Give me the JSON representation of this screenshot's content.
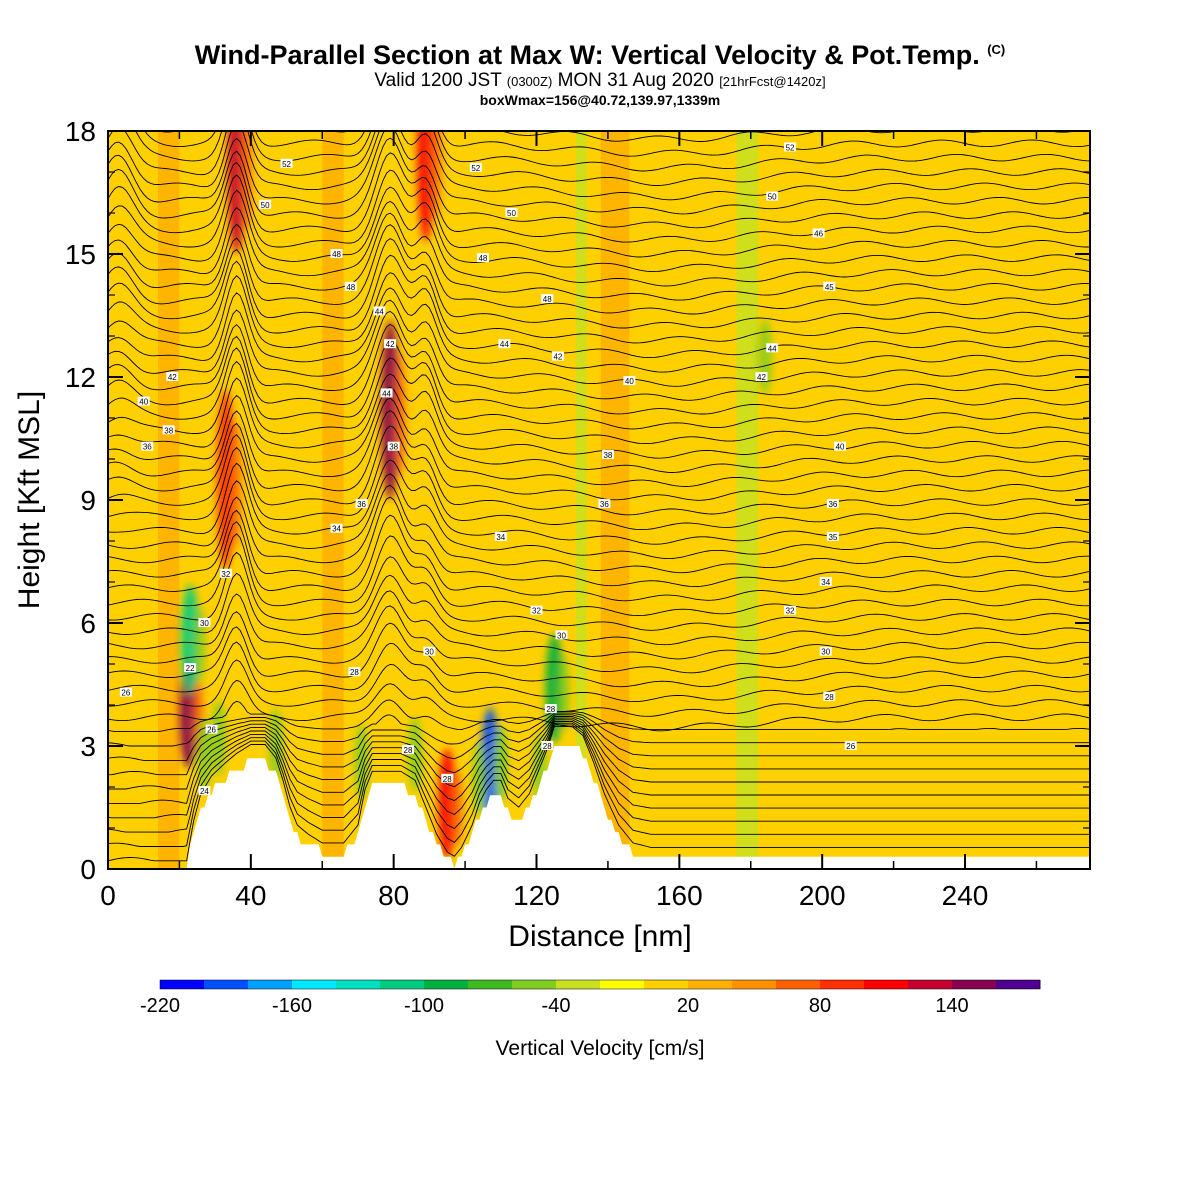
{
  "header": {
    "title": "Wind-Parallel Section at Max W: Vertical Velocity & Pot.Temp.",
    "title_mark": "(C)",
    "valid_prefix": "Valid 1200 JST",
    "valid_utc": "(0300Z)",
    "valid_date": "MON 31 Aug 2020",
    "forecast": "[21hrFcst@1420z]",
    "box_info": "boxWmax=156@40.72,139.97,1339m"
  },
  "chart_data": {
    "type": "heatmap",
    "title": "Wind-Parallel Section at Max W: Vertical Velocity & Pot.Temp.",
    "xlabel": "Distance [nm]",
    "ylabel": "Height [Kft MSL]",
    "xlim": [
      0,
      275
    ],
    "ylim": [
      0,
      18
    ],
    "x_ticks": [
      "0",
      "40",
      "80",
      "120",
      "160",
      "200",
      "240"
    ],
    "x_tick_values": [
      0,
      40,
      80,
      120,
      160,
      200,
      240
    ],
    "y_ticks": [
      "0",
      "3",
      "6",
      "9",
      "12",
      "15",
      "18"
    ],
    "y_tick_values": [
      0,
      3,
      6,
      9,
      12,
      15,
      18
    ],
    "colorbar": {
      "label": "Vertical Velocity [cm/s]",
      "tick_labels": [
        "-220",
        "-160",
        "-100",
        "-40",
        "20",
        "80",
        "140"
      ],
      "tick_values": [
        -220,
        -160,
        -100,
        -40,
        20,
        80,
        140
      ],
      "range": [
        -220,
        180
      ],
      "bin_width": 20,
      "colors": [
        "#0000ff",
        "#0050ff",
        "#00a0ff",
        "#00e8ff",
        "#00e0c0",
        "#00cc80",
        "#00b040",
        "#40b820",
        "#80cc20",
        "#c8e020",
        "#ffff00",
        "#ffd000",
        "#ffb000",
        "#ff9000",
        "#ff6000",
        "#ff3000",
        "#ff0000",
        "#c80030",
        "#880050",
        "#500090"
      ]
    },
    "terrain_kft": [
      [
        0,
        0
      ],
      [
        22,
        0
      ],
      [
        24,
        0.9
      ],
      [
        26,
        1.5
      ],
      [
        29,
        1.9
      ],
      [
        33,
        2.2
      ],
      [
        36,
        2.4
      ],
      [
        40,
        2.6
      ],
      [
        44,
        2.6
      ],
      [
        47,
        2.3
      ],
      [
        49,
        1.8
      ],
      [
        51,
        1.2
      ],
      [
        53,
        0.8
      ],
      [
        56,
        0.6
      ],
      [
        60,
        0.4
      ],
      [
        66,
        0.4
      ],
      [
        70,
        0.8
      ],
      [
        72,
        1.6
      ],
      [
        74,
        2.0
      ],
      [
        82,
        2.0
      ],
      [
        86,
        1.8
      ],
      [
        89,
        1.2
      ],
      [
        92,
        0.6
      ],
      [
        95,
        0.2
      ],
      [
        97,
        0.1
      ],
      [
        99,
        0.3
      ],
      [
        102,
        0.8
      ],
      [
        104,
        1.3
      ],
      [
        106,
        1.6
      ],
      [
        108,
        1.8
      ],
      [
        110,
        1.8
      ],
      [
        112,
        1.4
      ],
      [
        115,
        1.2
      ],
      [
        118,
        1.5
      ],
      [
        120,
        1.9
      ],
      [
        123,
        2.5
      ],
      [
        125,
        3.0
      ],
      [
        130,
        3.0
      ],
      [
        133,
        2.8
      ],
      [
        136,
        2.2
      ],
      [
        139,
        1.5
      ],
      [
        143,
        0.8
      ],
      [
        147,
        0.4
      ],
      [
        152,
        0.3
      ],
      [
        275,
        0.3
      ]
    ],
    "theta_contour_labels": [
      {
        "label": "52",
        "x": 50,
        "y": 17.2
      },
      {
        "label": "50",
        "x": 44,
        "y": 16.2
      },
      {
        "label": "48",
        "x": 64,
        "y": 15.0
      },
      {
        "label": "48",
        "x": 68,
        "y": 14.2
      },
      {
        "label": "52",
        "x": 103,
        "y": 17.1
      },
      {
        "label": "50",
        "x": 113,
        "y": 16.0
      },
      {
        "label": "48",
        "x": 105,
        "y": 14.9
      },
      {
        "label": "48",
        "x": 123,
        "y": 13.9
      },
      {
        "label": "44",
        "x": 111,
        "y": 12.8
      },
      {
        "label": "42",
        "x": 126,
        "y": 12.5
      },
      {
        "label": "40",
        "x": 146,
        "y": 11.9
      },
      {
        "label": "52",
        "x": 191,
        "y": 17.6
      },
      {
        "label": "50",
        "x": 186,
        "y": 16.4
      },
      {
        "label": "46",
        "x": 199,
        "y": 15.5
      },
      {
        "label": "45",
        "x": 202,
        "y": 14.2
      },
      {
        "label": "44",
        "x": 186,
        "y": 12.7
      },
      {
        "label": "42",
        "x": 183,
        "y": 12.0
      },
      {
        "label": "40",
        "x": 205,
        "y": 10.3
      },
      {
        "label": "44",
        "x": 76,
        "y": 13.6
      },
      {
        "label": "42",
        "x": 79,
        "y": 12.8
      },
      {
        "label": "44",
        "x": 78,
        "y": 11.6
      },
      {
        "label": "38",
        "x": 80,
        "y": 10.3
      },
      {
        "label": "42",
        "x": 18,
        "y": 12.0
      },
      {
        "label": "40",
        "x": 10,
        "y": 11.4
      },
      {
        "label": "38",
        "x": 17,
        "y": 10.7
      },
      {
        "label": "36",
        "x": 11,
        "y": 10.3
      },
      {
        "label": "36",
        "x": 71,
        "y": 8.9
      },
      {
        "label": "34",
        "x": 64,
        "y": 8.3
      },
      {
        "label": "34",
        "x": 110,
        "y": 8.1
      },
      {
        "label": "38",
        "x": 140,
        "y": 10.1
      },
      {
        "label": "36",
        "x": 139,
        "y": 8.9
      },
      {
        "label": "36",
        "x": 203,
        "y": 8.9
      },
      {
        "label": "35",
        "x": 203,
        "y": 8.1
      },
      {
        "label": "34",
        "x": 201,
        "y": 7.0
      },
      {
        "label": "32",
        "x": 33,
        "y": 7.2
      },
      {
        "label": "32",
        "x": 120,
        "y": 6.3
      },
      {
        "label": "32",
        "x": 191,
        "y": 6.3
      },
      {
        "label": "30",
        "x": 27,
        "y": 6.0
      },
      {
        "label": "30",
        "x": 90,
        "y": 5.3
      },
      {
        "label": "30",
        "x": 127,
        "y": 5.7
      },
      {
        "label": "30",
        "x": 201,
        "y": 5.3
      },
      {
        "label": "28",
        "x": 69,
        "y": 4.8
      },
      {
        "label": "28",
        "x": 202,
        "y": 4.2
      },
      {
        "label": "26",
        "x": 5,
        "y": 4.3
      },
      {
        "label": "26",
        "x": 208,
        "y": 3.0
      },
      {
        "label": "22",
        "x": 23,
        "y": 4.9
      },
      {
        "label": "26",
        "x": 29,
        "y": 3.4
      },
      {
        "label": "24",
        "x": 27,
        "y": 1.9
      },
      {
        "label": "28",
        "x": 84,
        "y": 2.9
      },
      {
        "label": "28",
        "x": 95,
        "y": 2.2
      },
      {
        "label": "28",
        "x": 124,
        "y": 3.9
      },
      {
        "label": "28",
        "x": 123,
        "y": 3.0
      }
    ],
    "velocity_cores": [
      {
        "x": 22.5,
        "y": 3.8,
        "value": 140
      },
      {
        "x": 36,
        "y": 17.2,
        "value": 120
      },
      {
        "x": 33,
        "y": 9.5,
        "value": 80
      },
      {
        "x": 79,
        "y": 11.2,
        "value": 140
      },
      {
        "x": 89,
        "y": 17.5,
        "value": 100
      },
      {
        "x": 95,
        "y": 1.6,
        "value": 100
      },
      {
        "x": 107,
        "y": 2.6,
        "value": -200
      },
      {
        "x": 23,
        "y": 5.6,
        "value": -120
      },
      {
        "x": 125,
        "y": 4.4,
        "value": -100
      }
    ]
  }
}
